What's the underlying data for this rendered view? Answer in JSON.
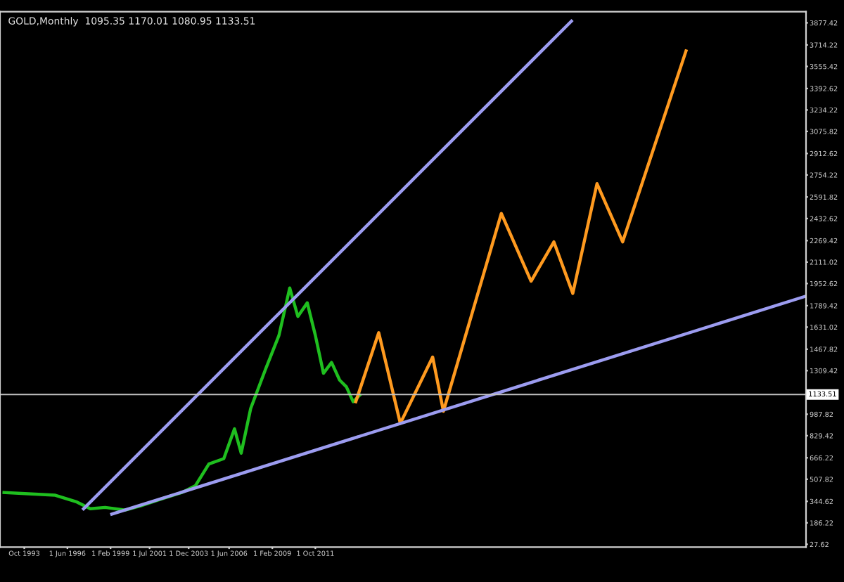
{
  "chart_data": {
    "type": "line",
    "title": "GOLD,Monthly  1095.35 1170.01 1080.95 1133.51",
    "series": [
      {
        "color": "#1fbf1f",
        "x": [
          "1992-07",
          "1994-01",
          "1995-09",
          "1997-01",
          "1997-11",
          "1998-10",
          "2000-01",
          "2000-12",
          "2002-03",
          "2003-07",
          "2004-05",
          "2005-03",
          "2006-02",
          "2006-10",
          "2007-03",
          "2007-10",
          "2008-09",
          "2009-07",
          "2010-03",
          "2010-09",
          "2011-04",
          "2011-10",
          "2012-04",
          "2012-10",
          "2013-04",
          "2013-09",
          "2014-02",
          "2014-07"
        ],
        "values": [
          410,
          400,
          390,
          340,
          290,
          300,
          280,
          310,
          360,
          410,
          460,
          620,
          660,
          880,
          700,
          1030,
          1320,
          1570,
          1920,
          1710,
          1810,
          1570,
          1290,
          1370,
          1240,
          1190,
          1080,
          1130
        ]
      },
      {
        "color": "#ff9a1f",
        "x": [
          "2014-04",
          "2015-09",
          "2017-01",
          "2019-01",
          "2019-09",
          "2023-04",
          "2025-02",
          "2026-07",
          "2027-09",
          "2029-03",
          "2030-10",
          "2034-09"
        ],
        "values": [
          1080,
          1590,
          920,
          1410,
          1010,
          2470,
          1970,
          2260,
          1880,
          2690,
          2260,
          3670
        ]
      },
      {
        "color": "#9c9cf0",
        "x": [
          "1999-03",
          "2042-02"
        ],
        "values": [
          250,
          1860
        ]
      },
      {
        "color": "#9c9cf0",
        "x": [
          "1997-06",
          "2027-08"
        ],
        "values": [
          290,
          3890
        ]
      }
    ],
    "xlim": [
      "1992-04",
      "2042-02"
    ],
    "xticks": [
      {
        "value": "1993-10-01",
        "label": "Oct 1993"
      },
      {
        "value": "1996-06-01",
        "label": "1 Jun 1996"
      },
      {
        "value": "1999-02-01",
        "label": "1 Feb 1999"
      },
      {
        "value": "2001-07-01",
        "label": "1 Jul 2001"
      },
      {
        "value": "2003-12-01",
        "label": "1 Dec 2003"
      },
      {
        "value": "2006-06-01",
        "label": "1 Jun 2006"
      },
      {
        "value": "2009-02-01",
        "label": "1 Feb 2009"
      },
      {
        "value": "2011-10-01",
        "label": "1 Oct 2011"
      }
    ],
    "ylim": [
      7,
      3960
    ],
    "yticks": [
      27.62,
      186.22,
      344.62,
      507.82,
      666.22,
      829.42,
      987.82,
      1309.42,
      1467.82,
      1631.02,
      1789.42,
      1952.62,
      2111.02,
      2269.42,
      2432.62,
      2591.82,
      2754.22,
      2912.62,
      3075.82,
      3234.22,
      3392.62,
      3555.42,
      3714.22,
      3877.42
    ],
    "ref_lines": [
      {
        "axis": "y",
        "value": 1133.51,
        "label": "1133.51",
        "color": "#c0c0c0"
      }
    ],
    "grid": false,
    "legend": false
  }
}
